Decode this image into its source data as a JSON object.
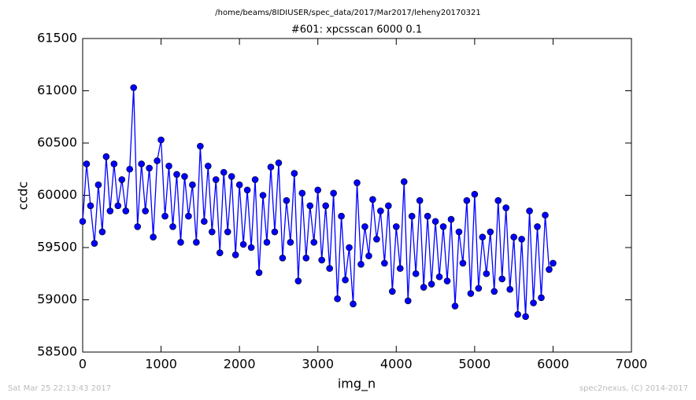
{
  "chart_data": {
    "type": "line",
    "title": "/home/beams/8IDIUSER/spec_data/2017/Mar2017/leheny20170321",
    "subtitle": "#601: xpcsscan 6000 0.1",
    "xlabel": "img_n",
    "ylabel": "ccdc",
    "footer_left": "Sat Mar 25 22:13:43 2017",
    "footer_right": "spec2nexus, (C) 2014-2017",
    "xlim": [
      0,
      7000
    ],
    "xticks": [
      0,
      1000,
      2000,
      3000,
      4000,
      5000,
      6000,
      7000
    ],
    "ylim": [
      58500,
      61500
    ],
    "yticks": [
      58500,
      59000,
      59500,
      60000,
      60500,
      61000,
      61500
    ],
    "x": [
      0,
      50,
      100,
      150,
      200,
      250,
      300,
      350,
      400,
      450,
      500,
      550,
      600,
      650,
      700,
      750,
      800,
      850,
      900,
      950,
      1000,
      1050,
      1100,
      1150,
      1200,
      1250,
      1300,
      1350,
      1400,
      1450,
      1500,
      1550,
      1600,
      1650,
      1700,
      1750,
      1800,
      1850,
      1900,
      1950,
      2000,
      2050,
      2100,
      2150,
      2200,
      2250,
      2300,
      2350,
      2400,
      2450,
      2500,
      2550,
      2600,
      2650,
      2700,
      2750,
      2800,
      2850,
      2900,
      2950,
      3000,
      3050,
      3100,
      3150,
      3200,
      3250,
      3300,
      3350,
      3400,
      3450,
      3500,
      3550,
      3600,
      3650,
      3700,
      3750,
      3800,
      3850,
      3900,
      3950,
      4000,
      4050,
      4100,
      4150,
      4200,
      4250,
      4300,
      4350,
      4400,
      4450,
      4500,
      4550,
      4600,
      4650,
      4700,
      4750,
      4800,
      4850,
      4900,
      4950,
      5000,
      5050,
      5100,
      5150,
      5200,
      5250,
      5300,
      5350,
      5400,
      5450,
      5500,
      5550,
      5600,
      5650,
      5700,
      5750,
      5800,
      5850,
      5900,
      5950,
      6000
    ],
    "series": [
      {
        "color": "#0000ff",
        "marker_color": "#0000ff",
        "values": [
          59750,
          60300,
          59900,
          59540,
          60100,
          59650,
          60370,
          59850,
          60300,
          59900,
          60150,
          59850,
          60250,
          61030,
          59700,
          60300,
          59850,
          60260,
          59600,
          60330,
          60530,
          59800,
          60280,
          59700,
          60200,
          59550,
          60180,
          59800,
          60100,
          59550,
          60470,
          59750,
          60280,
          59650,
          60150,
          59450,
          60220,
          59650,
          60180,
          59430,
          60100,
          59530,
          60050,
          59500,
          60150,
          59260,
          60000,
          59550,
          60270,
          59650,
          60310,
          59400,
          59950,
          59550,
          60210,
          59180,
          60020,
          59400,
          59900,
          59550,
          60050,
          59380,
          59900,
          59300,
          60020,
          59010,
          59800,
          59190,
          59500,
          58960,
          60120,
          59340,
          59700,
          59420,
          59960,
          59580,
          59850,
          59350,
          59900,
          59080,
          59700,
          59300,
          60130,
          58990,
          59800,
          59250,
          59950,
          59120,
          59800,
          59150,
          59750,
          59220,
          59700,
          59180,
          59770,
          58940,
          59650,
          59350,
          59950,
          59060,
          60010,
          59110,
          59600,
          59250,
          59650,
          59080,
          59950,
          59200,
          59880,
          59100,
          59600,
          58860,
          59580,
          58840,
          59850,
          58970,
          59700,
          59020,
          59810,
          59290,
          59350
        ]
      }
    ]
  }
}
